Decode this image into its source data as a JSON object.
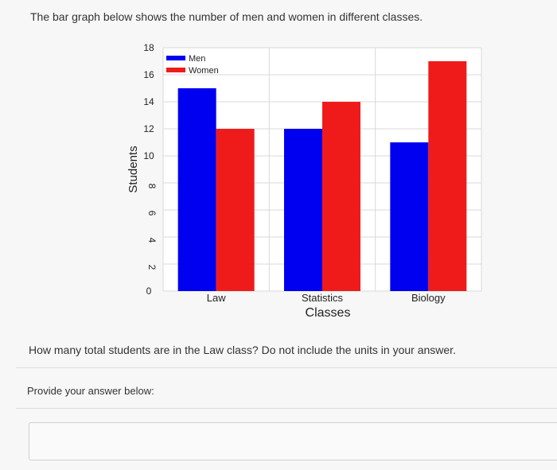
{
  "question": "The bar graph below shows the number of men and women in different classes.",
  "prompt": "How many total students are in the Law class? Do not include the units in your answer.",
  "answer_label": "Provide your answer below:",
  "answer_value": "",
  "colors": {
    "men": "#0000f0",
    "women": "#ef1b1b",
    "plot_bg": "#ffffff",
    "grid": "#d9d9d9"
  },
  "chart_data": {
    "type": "bar",
    "categories": [
      "Law",
      "Statistics",
      "Biology"
    ],
    "series": [
      {
        "name": "Men",
        "values": [
          15,
          12,
          11
        ]
      },
      {
        "name": "Women",
        "values": [
          12,
          14,
          17
        ]
      }
    ],
    "xlabel": "Classes",
    "ylabel": "Students",
    "ylim": [
      0,
      18
    ],
    "yticks": [
      0,
      2,
      4,
      6,
      8,
      10,
      12,
      14,
      16,
      18
    ],
    "grid": true,
    "legend_position": "top-left",
    "ytick_rotation": "vertical"
  }
}
